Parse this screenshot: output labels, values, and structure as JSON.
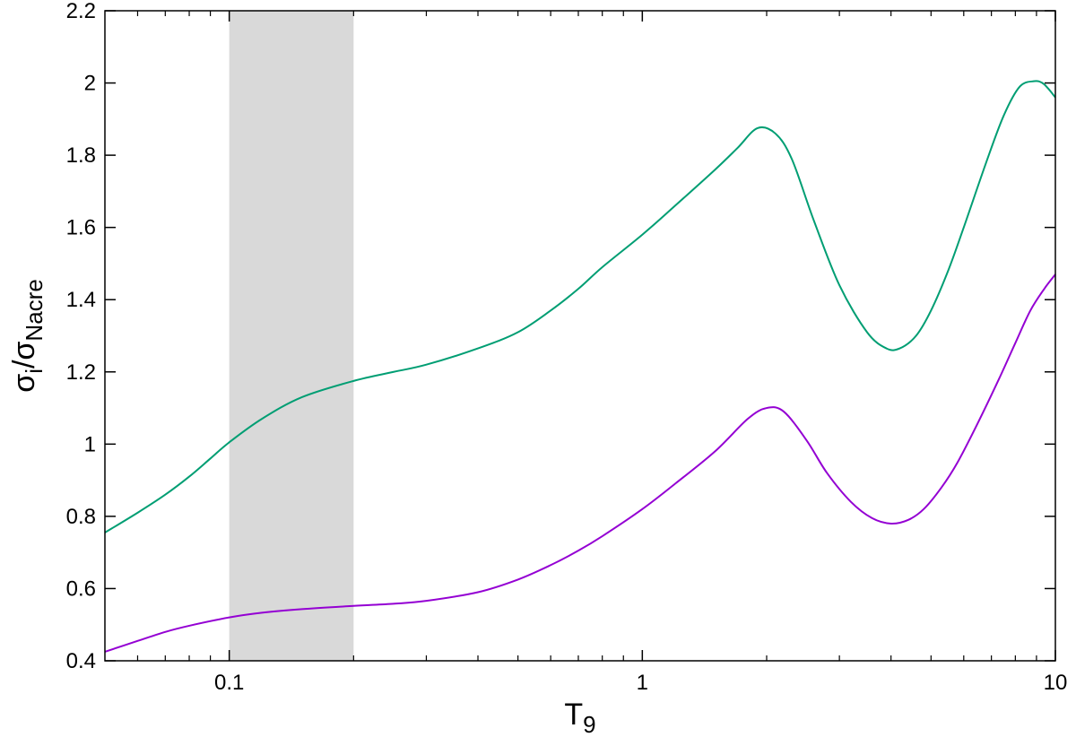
{
  "chart_data": {
    "type": "line",
    "xscale": "log",
    "xlim": [
      0.05,
      10
    ],
    "ylim": [
      0.4,
      2.2
    ],
    "xlabel": {
      "main": "T",
      "sub": "9"
    },
    "ylabel": {
      "sigma1": "σ",
      "sub1": "i",
      "slash": "/",
      "sigma2": "σ",
      "sub2": "Nacre"
    },
    "x_ticks": [
      {
        "value": 0.1,
        "label": "0.1"
      },
      {
        "value": 1,
        "label": "1"
      },
      {
        "value": 10,
        "label": "10"
      }
    ],
    "y_ticks": [
      {
        "value": 0.4,
        "label": "0.4"
      },
      {
        "value": 0.6,
        "label": "0.6"
      },
      {
        "value": 0.8,
        "label": "0.8"
      },
      {
        "value": 1.0,
        "label": "1"
      },
      {
        "value": 1.2,
        "label": "1.2"
      },
      {
        "value": 1.4,
        "label": "1.4"
      },
      {
        "value": 1.6,
        "label": "1.6"
      },
      {
        "value": 1.8,
        "label": "1.8"
      },
      {
        "value": 2.0,
        "label": "2"
      },
      {
        "value": 2.2,
        "label": "2.2"
      }
    ],
    "shaded_band": {
      "x": [
        0.1,
        0.2
      ],
      "color": "#d9d9d9"
    },
    "grid": false,
    "series": [
      {
        "color": "#009e73",
        "x": [
          0.05,
          0.06,
          0.07,
          0.08,
          0.09,
          0.1,
          0.12,
          0.15,
          0.2,
          0.25,
          0.3,
          0.4,
          0.5,
          0.6,
          0.7,
          0.8,
          1.0,
          1.2,
          1.5,
          1.7,
          1.9,
          2.1,
          2.3,
          2.6,
          3.0,
          3.5,
          3.9,
          4.2,
          4.6,
          5.0,
          5.5,
          6.0,
          6.8,
          7.5,
          8.2,
          8.9,
          9.3,
          9.6,
          10.0
        ],
        "y": [
          0.755,
          0.81,
          0.86,
          0.91,
          0.96,
          1.005,
          1.07,
          1.13,
          1.175,
          1.2,
          1.22,
          1.265,
          1.31,
          1.37,
          1.43,
          1.49,
          1.58,
          1.66,
          1.76,
          1.82,
          1.875,
          1.86,
          1.79,
          1.62,
          1.44,
          1.31,
          1.265,
          1.265,
          1.3,
          1.37,
          1.48,
          1.6,
          1.78,
          1.91,
          1.99,
          2.005,
          2.0,
          1.985,
          1.96
        ]
      },
      {
        "color": "#9400d3",
        "x": [
          0.05,
          0.06,
          0.07,
          0.08,
          0.1,
          0.12,
          0.15,
          0.2,
          0.25,
          0.3,
          0.4,
          0.5,
          0.6,
          0.7,
          0.8,
          1.0,
          1.2,
          1.5,
          1.8,
          2.0,
          2.2,
          2.5,
          2.8,
          3.2,
          3.6,
          4.0,
          4.4,
          4.8,
          5.3,
          5.8,
          6.5,
          7.3,
          8.0,
          8.7,
          9.4,
          10.0
        ],
        "y": [
          0.425,
          0.455,
          0.48,
          0.497,
          0.52,
          0.533,
          0.543,
          0.552,
          0.558,
          0.566,
          0.59,
          0.625,
          0.665,
          0.705,
          0.745,
          0.82,
          0.89,
          0.98,
          1.07,
          1.1,
          1.09,
          1.01,
          0.92,
          0.84,
          0.795,
          0.78,
          0.79,
          0.82,
          0.88,
          0.95,
          1.06,
          1.18,
          1.28,
          1.37,
          1.43,
          1.47
        ]
      }
    ]
  }
}
